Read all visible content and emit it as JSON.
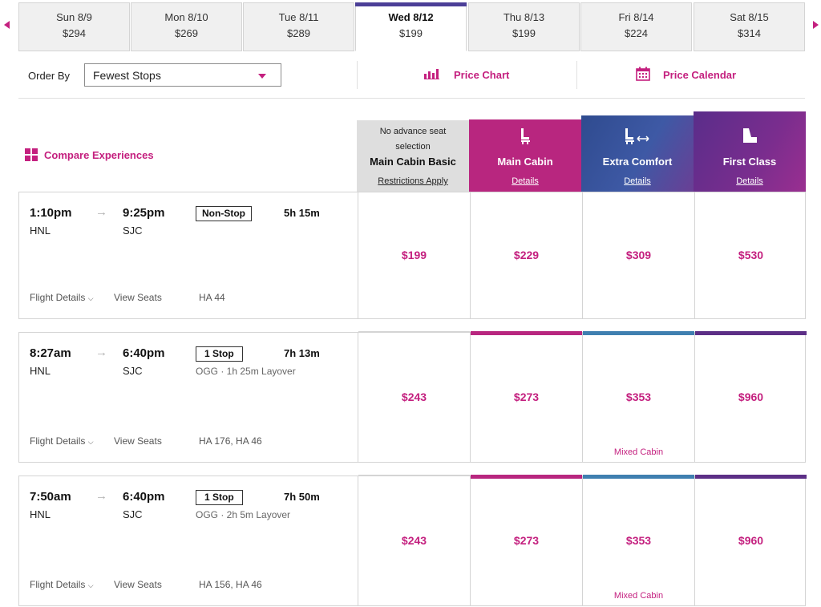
{
  "date_strip": [
    {
      "day": "Sun 8/9",
      "price": "$294"
    },
    {
      "day": "Mon 8/10",
      "price": "$269"
    },
    {
      "day": "Tue 8/11",
      "price": "$289"
    },
    {
      "day": "Wed 8/12",
      "price": "$199",
      "selected": true
    },
    {
      "day": "Thu 8/13",
      "price": "$199"
    },
    {
      "day": "Fri 8/14",
      "price": "$224"
    },
    {
      "day": "Sat 8/15",
      "price": "$314"
    }
  ],
  "controls": {
    "order_by_label": "Order By",
    "order_by_value": "Fewest Stops",
    "price_chart_label": "Price Chart",
    "price_calendar_label": "Price Calendar"
  },
  "compare_label": "Compare Experiences",
  "cabins": {
    "basic": {
      "note": "No advance seat selection",
      "name": "Main Cabin Basic",
      "link": "Restrictions Apply"
    },
    "main": {
      "name": "Main Cabin",
      "link": "Details",
      "icon": "seat-icon"
    },
    "extra": {
      "name": "Extra Comfort",
      "link": "Details",
      "icon": "seat-legroom-icon"
    },
    "first": {
      "name": "First Class",
      "link": "Details",
      "icon": "recliner-seat-icon"
    }
  },
  "colors": {
    "accent": "#c4207f",
    "main_bar": "#b8267f",
    "extra_bar": "#3f7fb0",
    "first_bar": "#5c2f86",
    "selected_date": "#4b3f97"
  },
  "flights": [
    {
      "depart": "1:10pm",
      "arrive": "9:25pm",
      "from": "HNL",
      "to": "SJC",
      "stops": "Non-Stop",
      "duration": "5h 15m",
      "layover": "",
      "details_link": "Flight Details",
      "seats_link": "View Seats",
      "flight_number": "HA 44",
      "fares": {
        "basic": "$199",
        "main": "$229",
        "extra": "$309",
        "first": "$530"
      },
      "extra_note": ""
    },
    {
      "depart": "8:27am",
      "arrive": "6:40pm",
      "from": "HNL",
      "to": "SJC",
      "stops": "1 Stop",
      "duration": "7h 13m",
      "layover": "OGG · 1h 25m Layover",
      "details_link": "Flight Details",
      "seats_link": "View Seats",
      "flight_number": "HA 176, HA 46",
      "fares": {
        "basic": "$243",
        "main": "$273",
        "extra": "$353",
        "first": "$960"
      },
      "extra_note": "Mixed Cabin"
    },
    {
      "depart": "7:50am",
      "arrive": "6:40pm",
      "from": "HNL",
      "to": "SJC",
      "stops": "1 Stop",
      "duration": "7h 50m",
      "layover": "OGG · 2h 5m Layover",
      "details_link": "Flight Details",
      "seats_link": "View Seats",
      "flight_number": "HA 156, HA 46",
      "fares": {
        "basic": "$243",
        "main": "$273",
        "extra": "$353",
        "first": "$960"
      },
      "extra_note": "Mixed Cabin"
    }
  ]
}
